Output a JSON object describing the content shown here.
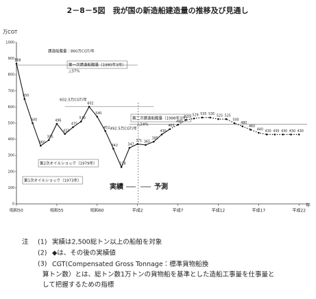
{
  "chart_data": {
    "type": "line",
    "title": "2－8－5図　我が国の新造船建造量の推移及び見通し",
    "y_label": "万CGT",
    "x_unit": "年",
    "x": [
      1975,
      1976,
      1977,
      1978,
      1979,
      1980,
      1981,
      1982,
      1983,
      1984,
      1985,
      1986,
      1987,
      1988,
      1989,
      1990,
      1991,
      1992,
      1993,
      1994,
      1995,
      1996,
      1997,
      1998,
      1999,
      2000,
      2001,
      2002,
      2003,
      2004,
      2005,
      2006,
      2007,
      2008,
      2009,
      2010
    ],
    "series": [
      {
        "name": "実績",
        "color": "#111111",
        "style": "solid",
        "values": [
          868,
          650,
          500,
          360,
          395,
          496,
          433,
          475,
          510,
          602,
          540,
          452,
          342,
          228,
          347,
          371,
          365,
          385,
          430,
          463,
          null,
          null,
          null,
          null,
          null,
          null,
          null,
          null,
          null,
          null,
          null,
          null,
          null,
          null,
          null,
          null
        ]
      },
      {
        "name": "予測",
        "color": "#111111",
        "style": "dotted",
        "values": [
          null,
          null,
          null,
          null,
          null,
          null,
          null,
          null,
          null,
          null,
          null,
          null,
          null,
          null,
          null,
          null,
          null,
          null,
          null,
          463,
          490,
          520,
          529,
          535,
          535,
          525,
          525,
          500,
          480,
          460,
          440,
          430,
          430,
          430,
          430,
          430
        ]
      }
    ],
    "xlim": [
      1975,
      2011
    ],
    "xticks": [
      {
        "value": 1975,
        "label": "昭和50"
      },
      {
        "value": 1980,
        "label": "昭和55"
      },
      {
        "value": 1985,
        "label": "昭和60"
      },
      {
        "value": 1990,
        "label": "平成2"
      },
      {
        "value": 1995,
        "label": "平成7"
      },
      {
        "value": 2000,
        "label": "平成12"
      },
      {
        "value": 2005,
        "label": "平成17"
      },
      {
        "value": 2010,
        "label": "平成22"
      }
    ],
    "ylim": [
      0,
      1000
    ],
    "yticks": [
      0,
      100,
      200,
      300,
      400,
      500,
      600,
      700,
      800,
      900,
      1000
    ],
    "reference_lines": [
      {
        "value": 860,
        "label": "建造船腹量：860万CGT/年"
      },
      {
        "value": 602.5,
        "label": "602.5万CGT/年"
      },
      {
        "value": 492.5,
        "label": "492.5万CGT/年"
      }
    ],
    "annotations": [
      "第一次建造船腹量（1980年3月）",
      "△37%",
      "第二次建造船腹量（1988年3月）",
      "△24%",
      "第2次オイルショック（1979年）",
      "第1次オイルショック（1973年）",
      "実績",
      "予測"
    ]
  },
  "notes": {
    "label": "注",
    "items": [
      {
        "num": "(1)",
        "text": "実績は2,500総トン以上の船舶を対象"
      },
      {
        "num": "(2)",
        "text": "◆は、その後の実績値"
      },
      {
        "num": "(3)",
        "text": "CGT(Compensated Gross Tonnage：標準貨物船換算トン数）とは、総トン数1万トンの貨物船を基準とした造船工事量を仕事量として把握するための指標"
      }
    ]
  }
}
